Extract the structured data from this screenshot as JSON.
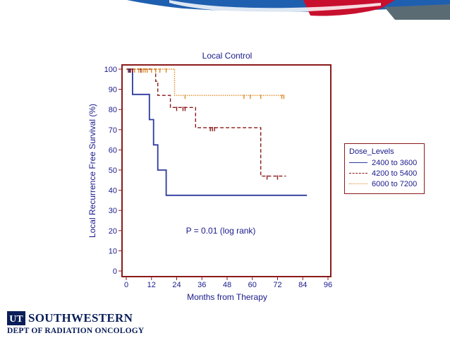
{
  "chart_data": {
    "type": "line",
    "title": "Local Control",
    "xlabel": "Months from Therapy",
    "ylabel": "Local Recurrence Free Survival (%)",
    "xlim": [
      0,
      96
    ],
    "ylim": [
      0,
      100
    ],
    "xticks": [
      "0",
      "12",
      "24",
      "36",
      "48",
      "60",
      "72",
      "84",
      "96"
    ],
    "yticks": [
      "0",
      "10",
      "20",
      "30",
      "40",
      "50",
      "60",
      "70",
      "80",
      "90",
      "100"
    ],
    "annotation": "P = 0.01 (log rank)",
    "legend_title": "Dose_Levels",
    "legend_position": "right",
    "series": [
      {
        "name": "2400 to 3600",
        "color": "#2b3a9e",
        "style": "solid",
        "points": [
          [
            0,
            100
          ],
          [
            3,
            100
          ],
          [
            3,
            87.5
          ],
          [
            11,
            87.5
          ],
          [
            11,
            75
          ],
          [
            13,
            75
          ],
          [
            13,
            62.5
          ],
          [
            15,
            62.5
          ],
          [
            15,
            50
          ],
          [
            19,
            50
          ],
          [
            19,
            37.5
          ],
          [
            86,
            37.5
          ]
        ]
      },
      {
        "name": "4200 to 5400",
        "color": "#8b1a1a",
        "style": "dashed",
        "points": [
          [
            0,
            100
          ],
          [
            14,
            100
          ],
          [
            14,
            94
          ],
          [
            15,
            94
          ],
          [
            15,
            87
          ],
          [
            21,
            87
          ],
          [
            21,
            81
          ],
          [
            33,
            81
          ],
          [
            33,
            71
          ],
          [
            64,
            71
          ],
          [
            64,
            47
          ],
          [
            76,
            47
          ]
        ]
      },
      {
        "name": "6000 to 7200",
        "color": "#e08a2a",
        "style": "dotted",
        "points": [
          [
            0,
            100
          ],
          [
            23,
            100
          ],
          [
            23,
            87
          ],
          [
            75,
            87
          ]
        ]
      }
    ],
    "censors": [
      {
        "series": 0,
        "x": [
          1.5,
          2
        ]
      },
      {
        "series": 1,
        "x": [
          1,
          2,
          3,
          7,
          24,
          27,
          28,
          40,
          41,
          42,
          67,
          72
        ]
      },
      {
        "series": 2,
        "x": [
          4,
          6,
          8,
          9,
          10,
          12,
          14,
          16,
          19,
          28,
          56,
          59,
          64,
          74,
          75
        ]
      }
    ]
  },
  "branding": {
    "logo_text": "SOUTHWESTERN",
    "logo_mark": "UT",
    "department": "DEPT OF RADIATION ONCOLOGY",
    "banner_colors": [
      "#1f5fb0",
      "#c8102e",
      "#5a6b74"
    ]
  }
}
